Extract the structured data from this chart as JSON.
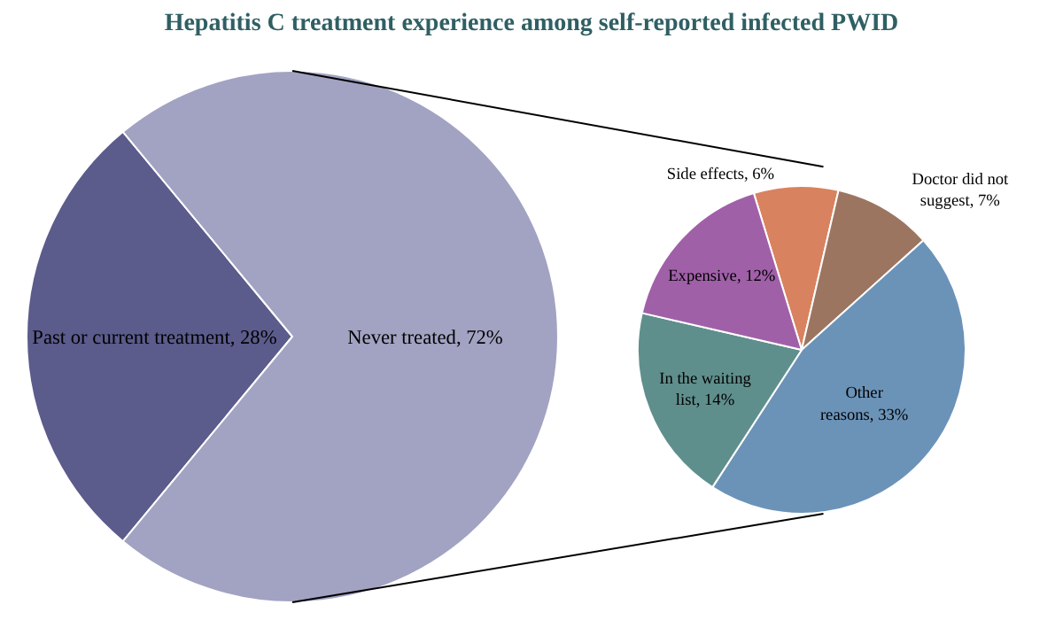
{
  "chart_data": [
    {
      "type": "pie",
      "title": "Hepatitis C treatment experience among self-reported infected PWID",
      "categories": [
        "Past or current treatment",
        "Never treated"
      ],
      "values": [
        28,
        72
      ],
      "colors": [
        "#5b5b8c",
        "#a2a2c2"
      ],
      "value_labels": [
        "28%",
        "72%"
      ],
      "legend": false
    },
    {
      "type": "pie",
      "categories": [
        "Side effects",
        "Doctor did not suggest",
        "Other reasons",
        "In the waiting list",
        "Expensive"
      ],
      "values": [
        6,
        7,
        33,
        14,
        12
      ],
      "colors": [
        "#d9825f",
        "#9c7560",
        "#6b93b8",
        "#5f8f8c",
        "#a060a8"
      ],
      "value_labels": [
        "6%",
        "7%",
        "33%",
        "14%",
        "12%"
      ],
      "legend": false
    }
  ]
}
